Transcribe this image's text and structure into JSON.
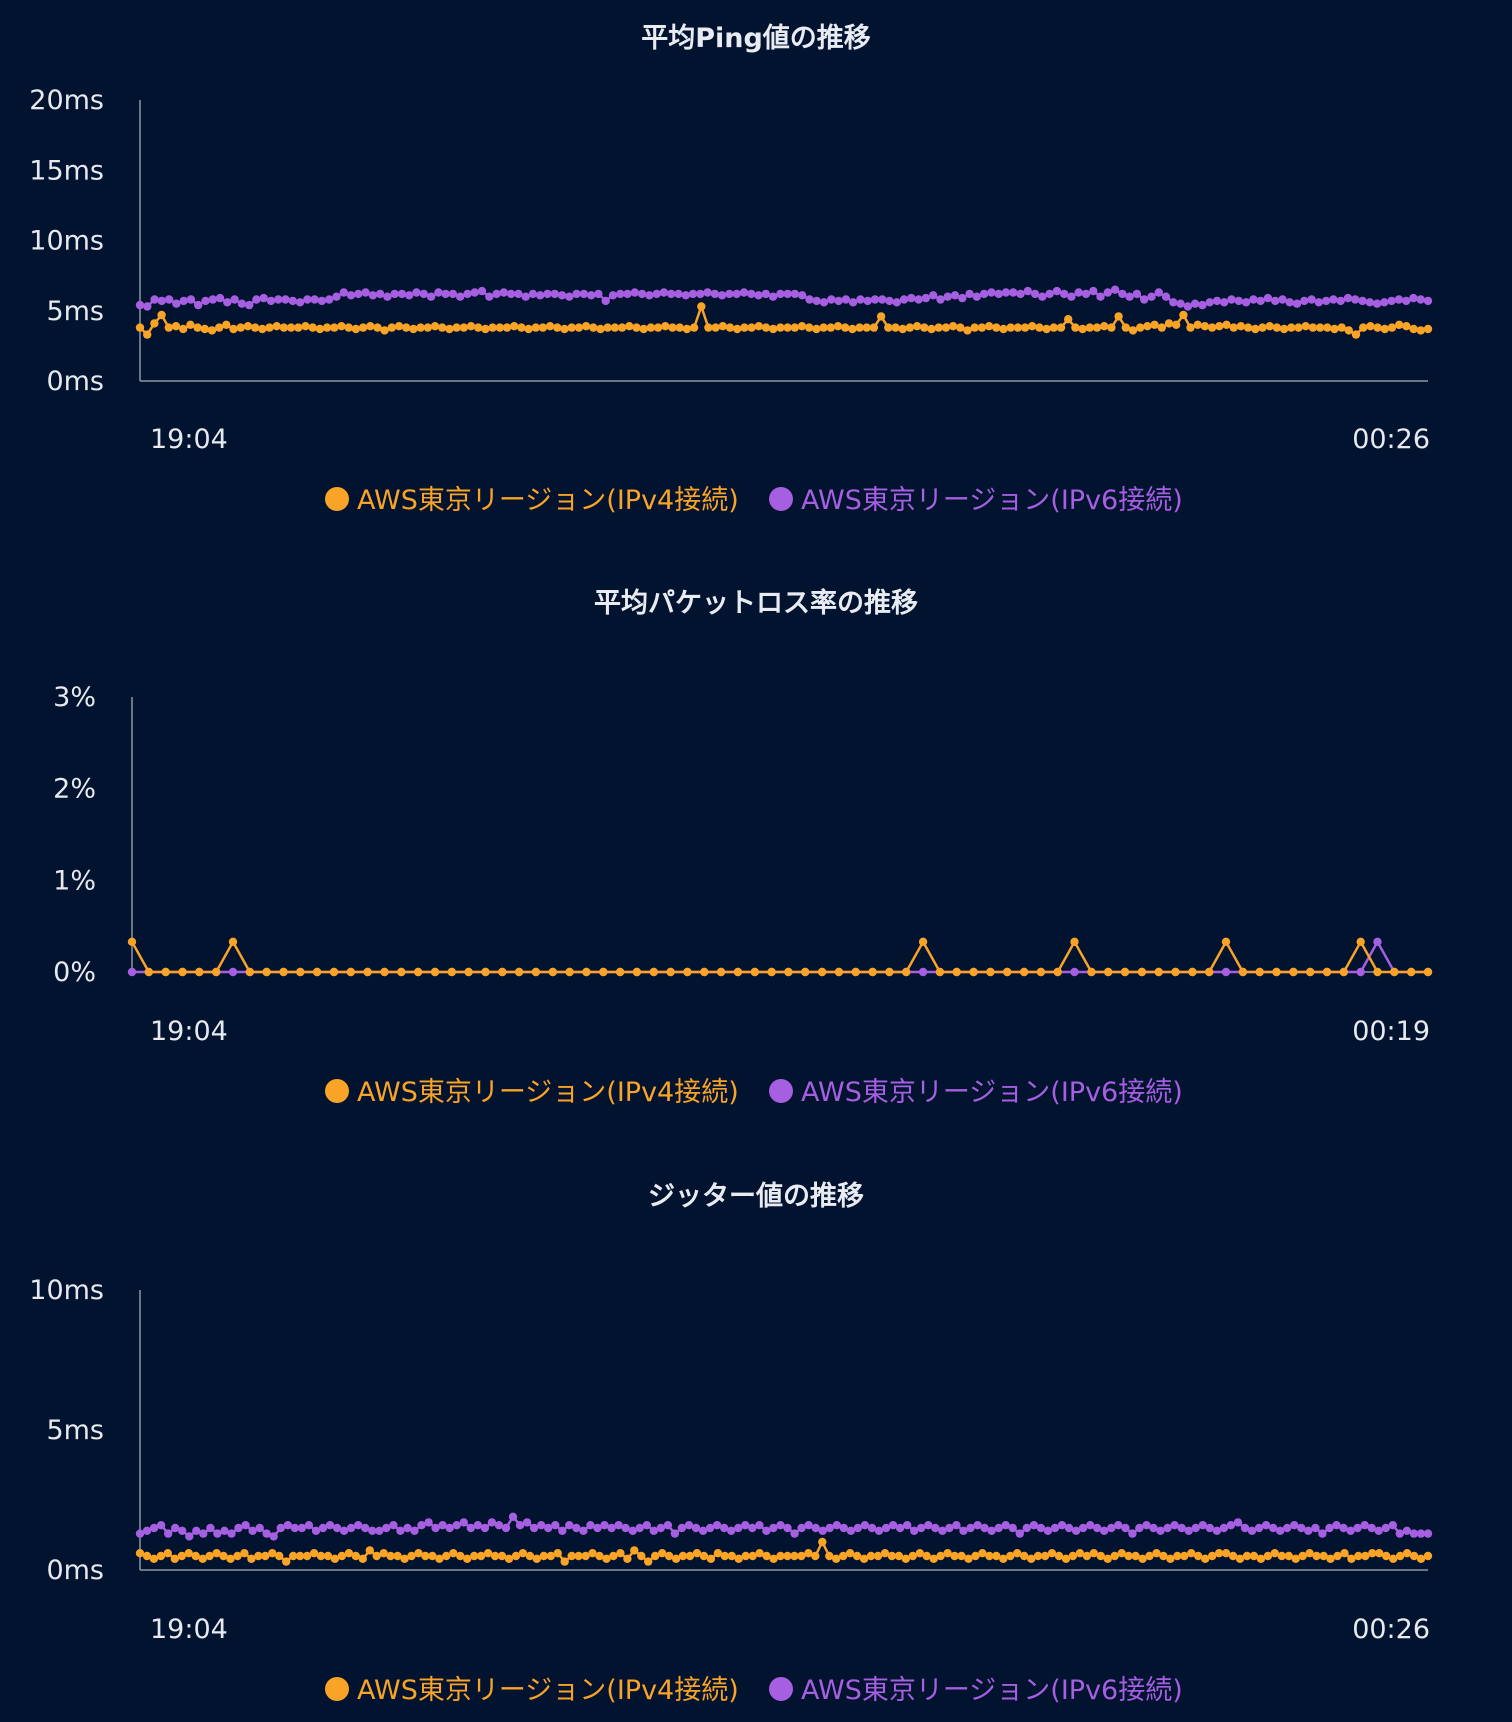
{
  "colors": {
    "background": "#021330",
    "ipv4": "#f9a327",
    "ipv6": "#a55fe0",
    "axis": "#8c96a5",
    "text": "#e6e9ee"
  },
  "legend": [
    {
      "name": "AWS東京リージョン(IPv4接続)",
      "color": "#f9a327",
      "marker": "circle"
    },
    {
      "name": "AWS東京リージョン(IPv6接続)",
      "color": "#a55fe0",
      "marker": "circle"
    }
  ],
  "chart_data": [
    {
      "type": "line",
      "title": "平均Ping値の推移",
      "x_start_label": "19:04",
      "x_end_label": "00:26",
      "y_ticks": [
        "0ms",
        "5ms",
        "10ms",
        "15ms",
        "20ms"
      ],
      "ylim": [
        0,
        20
      ],
      "grid": false,
      "legend_position": "bottom-center",
      "series": [
        {
          "name": "AWS東京リージョン(IPv4接続)",
          "color": "#f9a327",
          "values": [
            3.8,
            3.3,
            4.1,
            4.7,
            3.8,
            3.9,
            3.7,
            4.0,
            3.8,
            3.7,
            3.6,
            3.8,
            4.0,
            3.7,
            3.8,
            3.9,
            3.8,
            3.7,
            3.8,
            3.9,
            3.8,
            3.8,
            3.8,
            3.9,
            3.8,
            3.7,
            3.8,
            3.8,
            3.9,
            3.8,
            3.7,
            3.8,
            3.9,
            3.8,
            3.6,
            3.8,
            3.9,
            3.8,
            3.7,
            3.8,
            3.8,
            3.9,
            3.8,
            3.7,
            3.8,
            3.8,
            3.9,
            3.8,
            3.7,
            3.8,
            3.8,
            3.8,
            3.9,
            3.8,
            3.7,
            3.8,
            3.8,
            3.9,
            3.8,
            3.7,
            3.8,
            3.8,
            3.9,
            3.8,
            3.7,
            3.8,
            3.8,
            3.8,
            3.9,
            3.8,
            3.7,
            3.8,
            3.8,
            3.9,
            3.8,
            3.8,
            3.7,
            3.8,
            5.3,
            3.8,
            3.8,
            3.9,
            3.8,
            3.7,
            3.8,
            3.8,
            3.9,
            3.8,
            3.7,
            3.8,
            3.8,
            3.8,
            3.9,
            3.8,
            3.7,
            3.8,
            3.8,
            3.9,
            3.8,
            3.7,
            3.8,
            3.8,
            3.8,
            4.6,
            3.8,
            3.8,
            3.7,
            3.8,
            3.9,
            3.8,
            3.7,
            3.8,
            3.8,
            3.9,
            3.8,
            3.6,
            3.8,
            3.8,
            3.9,
            3.8,
            3.7,
            3.8,
            3.8,
            3.8,
            3.9,
            3.8,
            3.7,
            3.8,
            3.8,
            4.4,
            3.8,
            3.7,
            3.8,
            3.8,
            3.9,
            3.8,
            4.6,
            3.8,
            3.6,
            3.8,
            3.9,
            4.0,
            3.8,
            4.1,
            4.0,
            4.7,
            3.8,
            4.0,
            3.9,
            3.8,
            3.9,
            4.0,
            3.8,
            3.9,
            3.8,
            3.7,
            3.8,
            3.9,
            3.8,
            3.7,
            3.8,
            3.8,
            3.9,
            3.8,
            3.8,
            3.8,
            3.7,
            3.8,
            3.6,
            3.3,
            3.8,
            3.9,
            3.8,
            3.7,
            3.8,
            4.0,
            3.9,
            3.7,
            3.6,
            3.7
          ]
        },
        {
          "name": "AWS東京リージョン(IPv6接続)",
          "color": "#a55fe0",
          "values": [
            5.4,
            5.3,
            5.8,
            5.7,
            5.8,
            5.5,
            5.7,
            5.8,
            5.4,
            5.7,
            5.8,
            5.9,
            5.6,
            5.8,
            5.5,
            5.4,
            5.8,
            5.9,
            5.7,
            5.8,
            5.8,
            5.7,
            5.6,
            5.8,
            5.8,
            5.7,
            5.8,
            6.0,
            6.3,
            6.1,
            6.2,
            6.3,
            6.1,
            6.2,
            6.0,
            6.2,
            6.2,
            6.1,
            6.3,
            6.2,
            6.0,
            6.3,
            6.2,
            6.2,
            6.0,
            6.2,
            6.3,
            6.4,
            6.0,
            6.2,
            6.3,
            6.2,
            6.2,
            6.0,
            6.2,
            6.1,
            6.2,
            6.2,
            6.1,
            6.0,
            6.2,
            6.2,
            6.1,
            6.2,
            5.7,
            6.1,
            6.2,
            6.2,
            6.3,
            6.2,
            6.1,
            6.2,
            6.3,
            6.2,
            6.2,
            6.1,
            6.2,
            6.2,
            6.3,
            6.2,
            6.1,
            6.2,
            6.2,
            6.3,
            6.2,
            6.1,
            6.2,
            6.0,
            6.2,
            6.2,
            6.2,
            6.1,
            5.8,
            5.7,
            5.6,
            5.8,
            5.7,
            5.8,
            5.6,
            5.8,
            5.7,
            5.8,
            5.8,
            5.7,
            5.6,
            5.8,
            5.9,
            5.8,
            5.9,
            6.1,
            5.8,
            6.0,
            6.1,
            5.9,
            6.2,
            6.0,
            6.2,
            6.3,
            6.2,
            6.3,
            6.3,
            6.2,
            6.4,
            6.2,
            6.0,
            6.2,
            6.4,
            6.2,
            6.0,
            6.3,
            6.2,
            6.4,
            6.0,
            6.3,
            6.5,
            6.2,
            6.0,
            6.2,
            5.8,
            6.0,
            6.3,
            6.0,
            5.6,
            5.5,
            5.3,
            5.5,
            5.4,
            5.6,
            5.7,
            5.6,
            5.8,
            5.7,
            5.6,
            5.8,
            5.7,
            5.9,
            5.7,
            5.8,
            5.6,
            5.5,
            5.7,
            5.8,
            5.6,
            5.7,
            5.8,
            5.7,
            5.9,
            5.8,
            5.7,
            5.6,
            5.5,
            5.6,
            5.7,
            5.8,
            5.7,
            5.9,
            5.8,
            5.7
          ]
        }
      ]
    },
    {
      "type": "line",
      "title": "平均パケットロス率の推移",
      "x_start_label": "19:04",
      "x_end_label": "00:19",
      "y_ticks": [
        "0%",
        "1%",
        "2%",
        "3%"
      ],
      "ylim": [
        0,
        3
      ],
      "grid": false,
      "legend_position": "bottom-center",
      "series": [
        {
          "name": "AWS東京リージョン(IPv4接続)",
          "color": "#f9a327",
          "values": [
            0.33,
            0,
            0,
            0,
            0,
            0,
            0.33,
            0,
            0,
            0,
            0,
            0,
            0,
            0,
            0,
            0,
            0,
            0,
            0,
            0,
            0,
            0,
            0,
            0,
            0,
            0,
            0,
            0,
            0,
            0,
            0,
            0,
            0,
            0,
            0,
            0,
            0,
            0,
            0,
            0,
            0,
            0,
            0,
            0,
            0,
            0,
            0,
            0.33,
            0,
            0,
            0,
            0,
            0,
            0,
            0,
            0,
            0.33,
            0,
            0,
            0,
            0,
            0,
            0,
            0,
            0,
            0.33,
            0,
            0,
            0,
            0,
            0,
            0,
            0,
            0.33,
            0,
            0,
            0,
            0
          ]
        },
        {
          "name": "AWS東京リージョン(IPv6接続)",
          "color": "#a55fe0",
          "values": [
            0,
            0,
            0,
            0,
            0,
            0,
            0,
            0,
            0,
            0,
            0,
            0,
            0,
            0,
            0,
            0,
            0,
            0,
            0,
            0,
            0,
            0,
            0,
            0,
            0,
            0,
            0,
            0,
            0,
            0,
            0,
            0,
            0,
            0,
            0,
            0,
            0,
            0,
            0,
            0,
            0,
            0,
            0,
            0,
            0,
            0,
            0,
            0,
            0,
            0,
            0,
            0,
            0,
            0,
            0,
            0,
            0,
            0,
            0,
            0,
            0,
            0,
            0,
            0,
            0,
            0,
            0,
            0,
            0,
            0,
            0,
            0,
            0,
            0,
            0.33,
            0,
            0,
            0
          ]
        }
      ]
    },
    {
      "type": "line",
      "title": "ジッター値の推移",
      "x_start_label": "19:04",
      "x_end_label": "00:26",
      "y_ticks": [
        "0ms",
        "5ms",
        "10ms"
      ],
      "ylim": [
        0,
        10
      ],
      "grid": false,
      "legend_position": "bottom-center",
      "series": [
        {
          "name": "AWS東京リージョン(IPv4接続)",
          "color": "#f9a327",
          "values": [
            0.6,
            0.5,
            0.4,
            0.5,
            0.6,
            0.4,
            0.5,
            0.6,
            0.5,
            0.4,
            0.5,
            0.6,
            0.5,
            0.4,
            0.5,
            0.6,
            0.4,
            0.5,
            0.5,
            0.6,
            0.5,
            0.3,
            0.5,
            0.5,
            0.5,
            0.6,
            0.5,
            0.5,
            0.4,
            0.5,
            0.6,
            0.5,
            0.4,
            0.7,
            0.5,
            0.6,
            0.5,
            0.5,
            0.4,
            0.5,
            0.6,
            0.5,
            0.5,
            0.4,
            0.5,
            0.6,
            0.5,
            0.4,
            0.5,
            0.5,
            0.6,
            0.5,
            0.5,
            0.4,
            0.5,
            0.6,
            0.5,
            0.4,
            0.5,
            0.5,
            0.6,
            0.3,
            0.5,
            0.5,
            0.5,
            0.6,
            0.5,
            0.4,
            0.5,
            0.6,
            0.4,
            0.7,
            0.5,
            0.3,
            0.5,
            0.6,
            0.5,
            0.4,
            0.5,
            0.5,
            0.6,
            0.5,
            0.4,
            0.6,
            0.5,
            0.5,
            0.4,
            0.5,
            0.5,
            0.6,
            0.5,
            0.4,
            0.5,
            0.5,
            0.5,
            0.5,
            0.6,
            0.5,
            1.0,
            0.5,
            0.4,
            0.5,
            0.6,
            0.5,
            0.4,
            0.5,
            0.5,
            0.6,
            0.5,
            0.5,
            0.4,
            0.5,
            0.6,
            0.5,
            0.4,
            0.5,
            0.6,
            0.5,
            0.5,
            0.4,
            0.5,
            0.6,
            0.5,
            0.5,
            0.4,
            0.5,
            0.6,
            0.5,
            0.4,
            0.5,
            0.5,
            0.6,
            0.5,
            0.4,
            0.5,
            0.6,
            0.5,
            0.6,
            0.5,
            0.4,
            0.5,
            0.6,
            0.5,
            0.5,
            0.4,
            0.5,
            0.6,
            0.5,
            0.4,
            0.5,
            0.5,
            0.6,
            0.5,
            0.4,
            0.5,
            0.6,
            0.6,
            0.5,
            0.4,
            0.5,
            0.5,
            0.4,
            0.5,
            0.6,
            0.5,
            0.5,
            0.4,
            0.5,
            0.6,
            0.5,
            0.5,
            0.4,
            0.5,
            0.6,
            0.4,
            0.5,
            0.5,
            0.6,
            0.6,
            0.5,
            0.4,
            0.5,
            0.6,
            0.5,
            0.4,
            0.5
          ]
        },
        {
          "name": "AWS東京リージョン(IPv6接続)",
          "color": "#a55fe0",
          "values": [
            1.3,
            1.4,
            1.5,
            1.6,
            1.3,
            1.5,
            1.4,
            1.2,
            1.4,
            1.3,
            1.5,
            1.3,
            1.4,
            1.3,
            1.5,
            1.6,
            1.4,
            1.5,
            1.3,
            1.2,
            1.5,
            1.6,
            1.5,
            1.5,
            1.6,
            1.4,
            1.5,
            1.6,
            1.5,
            1.4,
            1.5,
            1.6,
            1.5,
            1.4,
            1.4,
            1.5,
            1.6,
            1.4,
            1.5,
            1.4,
            1.6,
            1.7,
            1.5,
            1.6,
            1.5,
            1.6,
            1.7,
            1.5,
            1.6,
            1.5,
            1.7,
            1.6,
            1.5,
            1.9,
            1.6,
            1.7,
            1.5,
            1.6,
            1.5,
            1.6,
            1.4,
            1.6,
            1.5,
            1.4,
            1.6,
            1.5,
            1.6,
            1.5,
            1.6,
            1.5,
            1.4,
            1.5,
            1.6,
            1.4,
            1.5,
            1.6,
            1.3,
            1.5,
            1.6,
            1.5,
            1.4,
            1.5,
            1.6,
            1.5,
            1.4,
            1.5,
            1.6,
            1.5,
            1.6,
            1.4,
            1.5,
            1.6,
            1.5,
            1.3,
            1.5,
            1.6,
            1.5,
            1.4,
            1.5,
            1.6,
            1.5,
            1.4,
            1.5,
            1.6,
            1.5,
            1.4,
            1.5,
            1.6,
            1.5,
            1.6,
            1.4,
            1.5,
            1.6,
            1.5,
            1.4,
            1.5,
            1.6,
            1.4,
            1.5,
            1.6,
            1.5,
            1.4,
            1.5,
            1.6,
            1.5,
            1.3,
            1.5,
            1.6,
            1.5,
            1.4,
            1.5,
            1.6,
            1.5,
            1.4,
            1.5,
            1.6,
            1.5,
            1.4,
            1.5,
            1.6,
            1.5,
            1.3,
            1.5,
            1.6,
            1.5,
            1.4,
            1.5,
            1.6,
            1.5,
            1.4,
            1.5,
            1.6,
            1.5,
            1.4,
            1.5,
            1.6,
            1.7,
            1.5,
            1.4,
            1.5,
            1.6,
            1.5,
            1.4,
            1.5,
            1.6,
            1.5,
            1.4,
            1.5,
            1.3,
            1.5,
            1.6,
            1.5,
            1.4,
            1.5,
            1.6,
            1.5,
            1.4,
            1.5,
            1.6,
            1.3,
            1.4,
            1.3,
            1.3,
            1.3
          ]
        }
      ]
    }
  ]
}
